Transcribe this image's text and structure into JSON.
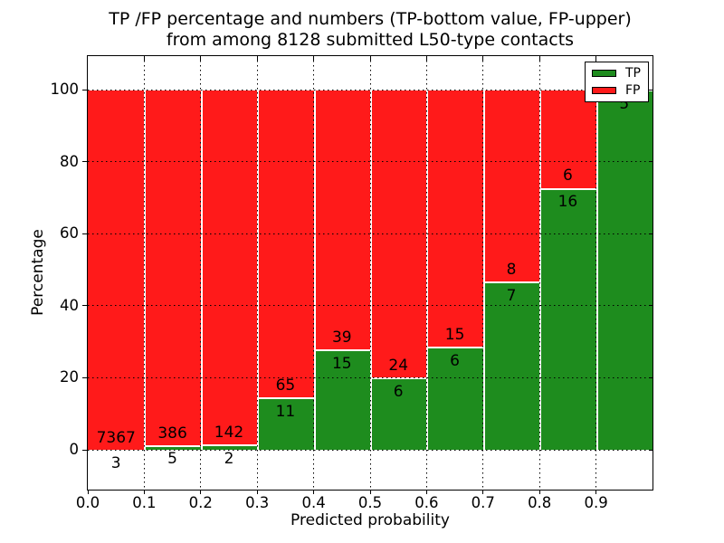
{
  "chart_data": {
    "type": "bar",
    "stacked": true,
    "units": "percent",
    "title": "TP /FP percentage and numbers (TP-bottom value, FP-upper) from among 8128 submitted L50-type contacts",
    "title_lines": [
      "TP /FP percentage and numbers (TP-bottom value, FP-upper)",
      "from among 8128 submitted L50-type contacts"
    ],
    "xlabel": "Predicted probability",
    "ylabel": "Percentage",
    "total_submitted": 8128,
    "xlim": [
      0.0,
      1.0
    ],
    "ylim": [
      -11,
      110
    ],
    "grid": "dotted, both axes",
    "legend_position": "upper right",
    "x_ticks": [
      "0.0",
      "0.1",
      "0.2",
      "0.3",
      "0.4",
      "0.5",
      "0.6",
      "0.7",
      "0.8",
      "0.9"
    ],
    "x_tick_values": [
      0.0,
      0.1,
      0.2,
      0.3,
      0.4,
      0.5,
      0.6,
      0.7,
      0.8,
      0.9
    ],
    "y_ticks": [
      0,
      20,
      40,
      60,
      80,
      100
    ],
    "bin_edges": [
      0.0,
      0.1,
      0.2,
      0.3,
      0.4,
      0.5,
      0.6,
      0.7,
      0.8,
      0.9,
      1.0
    ],
    "categories": [
      "0.0-0.1",
      "0.1-0.2",
      "0.2-0.3",
      "0.3-0.4",
      "0.4-0.5",
      "0.5-0.6",
      "0.6-0.7",
      "0.7-0.8",
      "0.8-0.9",
      "0.9-1.0"
    ],
    "series": [
      {
        "name": "TP",
        "color": "#1e8c1e",
        "counts": [
          3,
          5,
          2,
          11,
          15,
          6,
          6,
          7,
          16,
          5
        ]
      },
      {
        "name": "FP",
        "color": "#ff1a1a",
        "counts": [
          7367,
          386,
          142,
          65,
          39,
          24,
          15,
          8,
          6,
          0
        ]
      }
    ],
    "tp_percent": [
      0.04,
      1.28,
      1.39,
      14.47,
      27.78,
      20.0,
      28.57,
      46.67,
      72.73,
      100.0
    ],
    "annotation_note": "TP count printed below green top edge, FP count printed above it; last bin FP label hidden behind legend",
    "colors": {
      "tp": "#1e8c1e",
      "fp": "#ff1a1a",
      "grid": "#000000",
      "frame": "#000000",
      "background": "#ffffff"
    }
  }
}
